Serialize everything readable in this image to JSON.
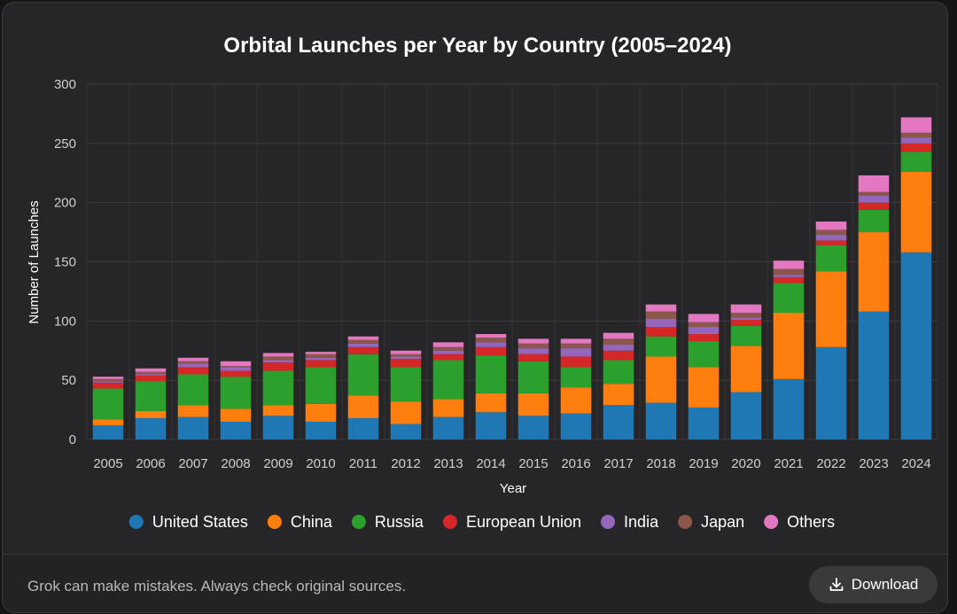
{
  "footer": {
    "disclaimer": "Grok can make mistakes. Always check original sources.",
    "download_label": "Download",
    "download_icon": "download-icon"
  },
  "chart_data": {
    "type": "bar",
    "stacked": true,
    "title": "Orbital Launches per Year by Country (2005–2024)",
    "xlabel": "Year",
    "ylabel": "Number of Launches",
    "ylim": [
      0,
      300
    ],
    "yticks": [
      0,
      50,
      100,
      150,
      200,
      250,
      300
    ],
    "grid": true,
    "legend_position": "bottom",
    "categories": [
      "2005",
      "2006",
      "2007",
      "2008",
      "2009",
      "2010",
      "2011",
      "2012",
      "2013",
      "2014",
      "2015",
      "2016",
      "2017",
      "2018",
      "2019",
      "2020",
      "2021",
      "2022",
      "2023",
      "2024"
    ],
    "series": [
      {
        "name": "United States",
        "color": "#1f77b4",
        "values": [
          12,
          18,
          19,
          15,
          20,
          15,
          18,
          13,
          19,
          23,
          20,
          22,
          29,
          31,
          27,
          40,
          51,
          78,
          108,
          158
        ]
      },
      {
        "name": "China",
        "color": "#ff7f0e",
        "values": [
          5,
          6,
          10,
          11,
          9,
          15,
          19,
          19,
          15,
          16,
          19,
          22,
          18,
          39,
          34,
          39,
          56,
          64,
          67,
          68
        ]
      },
      {
        "name": "Russia",
        "color": "#2ca02c",
        "values": [
          26,
          25,
          26,
          27,
          29,
          31,
          35,
          29,
          33,
          32,
          27,
          17,
          20,
          17,
          22,
          17,
          25,
          22,
          19,
          17
        ]
      },
      {
        "name": "European Union",
        "color": "#d62728",
        "values": [
          5,
          5,
          6,
          5,
          7,
          6,
          6,
          7,
          5,
          7,
          6,
          9,
          8,
          8,
          6,
          5,
          5,
          4,
          6,
          7
        ]
      },
      {
        "name": "India",
        "color": "#9467bd",
        "values": [
          1,
          1,
          3,
          3,
          2,
          2,
          3,
          2,
          3,
          4,
          5,
          7,
          5,
          7,
          6,
          2,
          2,
          5,
          6,
          5
        ]
      },
      {
        "name": "Japan",
        "color": "#8c564b",
        "values": [
          2,
          2,
          2,
          1,
          3,
          3,
          3,
          2,
          3,
          4,
          4,
          4,
          5,
          6,
          4,
          4,
          5,
          4,
          3,
          4
        ]
      },
      {
        "name": "Others",
        "color": "#e377c2",
        "values": [
          2,
          3,
          3,
          4,
          3,
          2,
          3,
          3,
          4,
          3,
          4,
          4,
          5,
          6,
          7,
          7,
          7,
          7,
          14,
          13
        ]
      }
    ]
  }
}
